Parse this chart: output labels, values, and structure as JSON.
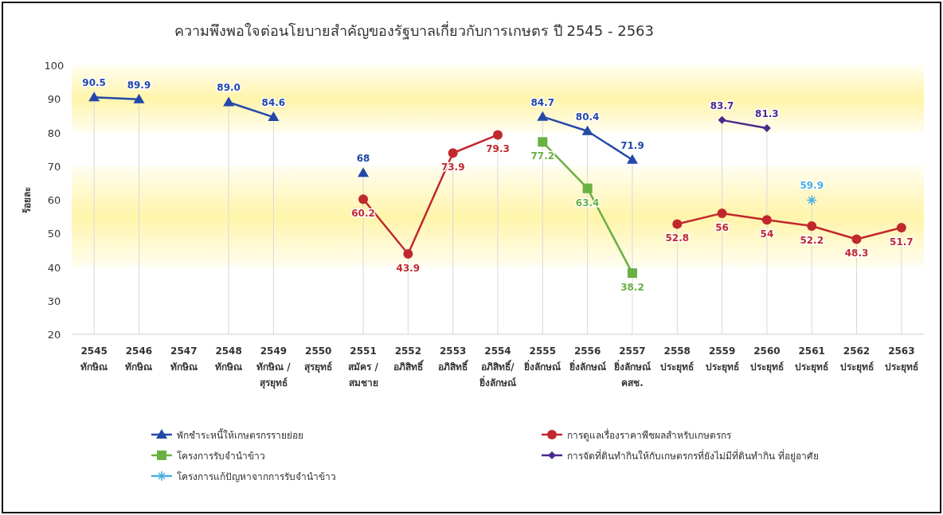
{
  "chart_data": {
    "type": "line",
    "title": "ความพึงพอใจต่อนโยบายสำคัญของรัฐบาลเกี่ยวกับการเกษตร ปี 2545 - 2563",
    "ylabel": "ร้อยละ",
    "categories": [
      "2545\nทักษิณ",
      "2546\nทักษิณ",
      "2547\nทักษิณ",
      "2548\nทักษิณ",
      "2549\nทักษิณ /\nสุรยุทธ์",
      "2550\nสุรยุทธ์",
      "2551\nสมัคร /\nสมชาย",
      "2552\nอภิสิทธิ์",
      "2553\nอภิสิทธิ์",
      "2554\nอภิสิทธิ์/\nยิ่งลักษณ์",
      "2555\nยิ่งลักษณ์",
      "2556\nยิ่งลักษณ์",
      "2557\nยิ่งลักษณ์\nคสช.",
      "2558\nประยุทธ์",
      "2559\nประยุทธ์",
      "2560\nประยุทธ์",
      "2561\nประยุทธ์",
      "2562\nประยุทธ์",
      "2563\nประยุทธ์"
    ],
    "series": [
      {
        "name": "พักชำระหนี้ให้เกษตรกรรายย่อย",
        "color": "#2348a8",
        "marker": "triangle",
        "values": [
          90.5,
          89.9,
          null,
          89.0,
          84.6,
          null,
          68,
          null,
          null,
          null,
          84.7,
          80.4,
          71.9,
          null,
          null,
          null,
          null,
          null,
          null
        ],
        "value_labels": [
          "90.5",
          "89.9",
          null,
          "89.0",
          "84.6",
          null,
          "68",
          null,
          null,
          null,
          "84.7",
          "80.4",
          "71.9",
          null,
          null,
          null,
          null,
          null,
          null
        ]
      },
      {
        "name": "การดูแลเรื่องราคาพืชผลสำหรับเกษตรกร",
        "color": "#c0282d",
        "marker": "circle",
        "values": [
          null,
          null,
          null,
          null,
          null,
          null,
          60.2,
          43.9,
          73.9,
          79.3,
          null,
          null,
          null,
          52.8,
          56,
          54,
          52.2,
          48.3,
          51.7
        ],
        "value_labels": [
          null,
          null,
          null,
          null,
          null,
          null,
          "60.2",
          "43.9",
          "73.9",
          "79.3",
          null,
          null,
          null,
          "52.8",
          "56",
          "54",
          "52.2",
          "48.3",
          "51.7"
        ]
      },
      {
        "name": "โครงการรับจำนำข้าว",
        "color": "#6ab042",
        "marker": "square",
        "values": [
          null,
          null,
          null,
          null,
          null,
          null,
          null,
          null,
          null,
          null,
          77.2,
          63.4,
          38.2,
          null,
          null,
          null,
          null,
          null,
          null
        ],
        "value_labels": [
          null,
          null,
          null,
          null,
          null,
          null,
          null,
          null,
          null,
          null,
          "77.2",
          "63.4",
          "38.2",
          null,
          null,
          null,
          null,
          null,
          null
        ]
      },
      {
        "name": "การจัดที่ดินทำกินให้กับเกษตรกรที่ยังไม่มีที่ดินทำกิน ที่อยู่อาศัย",
        "color": "#4a2a8c",
        "marker": "diamond",
        "values": [
          null,
          null,
          null,
          null,
          null,
          null,
          null,
          null,
          null,
          null,
          null,
          null,
          null,
          null,
          83.7,
          81.3,
          null,
          null,
          null
        ],
        "value_labels": [
          null,
          null,
          null,
          null,
          null,
          null,
          null,
          null,
          null,
          null,
          null,
          null,
          null,
          null,
          "83.7",
          "81.3",
          null,
          null,
          null
        ]
      },
      {
        "name": "โครงการแก้ปัญหาจากการรับจำนำข้าว",
        "color": "#4ab0e0",
        "marker": "cross",
        "values": [
          null,
          null,
          null,
          null,
          null,
          null,
          null,
          null,
          null,
          null,
          null,
          null,
          null,
          null,
          null,
          null,
          59.9,
          null,
          null
        ],
        "value_labels": [
          null,
          null,
          null,
          null,
          null,
          null,
          null,
          null,
          null,
          null,
          null,
          null,
          null,
          null,
          null,
          null,
          "59.9",
          null,
          null
        ]
      }
    ],
    "ylim": [
      20,
      100
    ],
    "yticks": [
      20,
      30,
      40,
      50,
      60,
      70,
      80,
      90,
      100
    ],
    "bands": [
      {
        "axis": "y",
        "from": 80,
        "to": 100,
        "color": "#fff3a0"
      },
      {
        "axis": "y",
        "from": 40,
        "to": 70,
        "color": "#fff3a0"
      }
    ],
    "legend": "bottom",
    "grid": "x"
  }
}
